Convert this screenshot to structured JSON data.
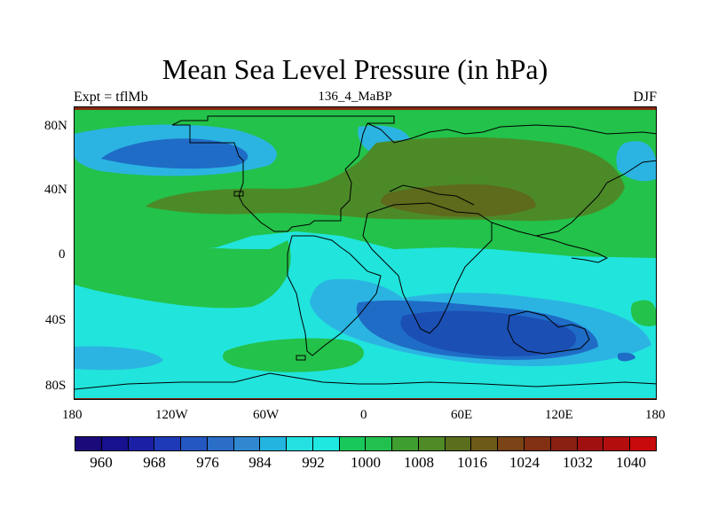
{
  "title": "Mean Sea Level Pressure (in hPa)",
  "left_string": "Expt = tflMb",
  "center_string": "136_4_MaBP",
  "right_string": "DJF",
  "lat_ticks": [
    "80N",
    "40N",
    "0",
    "40S",
    "80S"
  ],
  "lon_ticks": [
    "180",
    "120W",
    "60W",
    "0",
    "60E",
    "120E",
    "180"
  ],
  "colorbar": {
    "colors": [
      "#1a0a7a",
      "#17108f",
      "#1b1fa6",
      "#1e3ab8",
      "#2557c2",
      "#2a6ec8",
      "#2f88d0",
      "#23b5e0",
      "#25e0e0",
      "#1fe8e0",
      "#18c85a",
      "#22c04e",
      "#3e9e2f",
      "#4f8a26",
      "#5a6e1e",
      "#6e5a18",
      "#7a4416",
      "#823014",
      "#8a2012",
      "#a01010",
      "#b40d0d",
      "#c80a0a"
    ],
    "labels": [
      "960",
      "968",
      "976",
      "984",
      "992",
      "1000",
      "1008",
      "1016",
      "1024",
      "1032",
      "1040"
    ]
  },
  "map_colors": {
    "cyan": "#21e4dc",
    "green": "#23c24a",
    "lightblue": "#2bb4e2",
    "blue": "#1f6cc6",
    "darkblue": "#1b4fb3",
    "olive": "#4c8a28",
    "brown": "#5e6a1c",
    "darkred": "#8a2812"
  }
}
